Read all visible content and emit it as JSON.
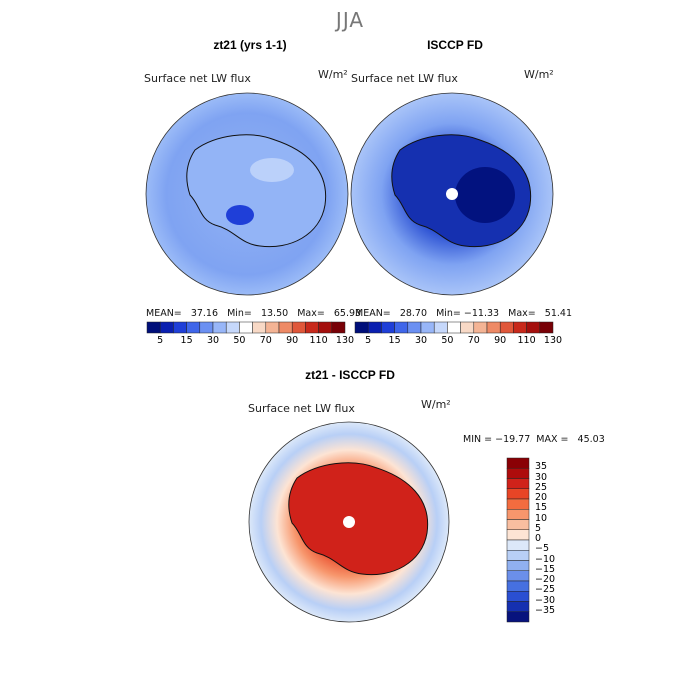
{
  "season": "JJA",
  "panels": [
    {
      "title": "zt21 (yrs 1-1)",
      "variable": "Surface net LW flux",
      "unit": "W/m²",
      "stats": "MEAN=   37.16   Min=   13.50   Max=   65.93"
    },
    {
      "title": "ISCCP FD",
      "variable": "Surface net LW flux",
      "unit": "W/m²",
      "stats": "MEAN=   28.70   Min= −11.33   Max=   51.41"
    },
    {
      "title": "zt21 - ISCCP FD",
      "variable": "Surface net LW flux",
      "unit": "W/m²",
      "stats": "MIN = −19.77  MAX =   45.03"
    }
  ],
  "colorbar_top": {
    "ticks": [
      "5",
      "15",
      "30",
      "50",
      "70",
      "90",
      "110",
      "130"
    ],
    "colors": [
      "#000f7a",
      "#0a1fb0",
      "#1f3fd8",
      "#3f66ea",
      "#6b90f2",
      "#98b6f8",
      "#c6d8fb",
      "#ffffff",
      "#f8d9c6",
      "#f4b495",
      "#ee8a66",
      "#e0573a",
      "#c8291b",
      "#a40f0d",
      "#780006"
    ]
  },
  "colorbar_diff": {
    "ticks": [
      "35",
      "30",
      "25",
      "20",
      "15",
      "10",
      "5",
      "0",
      "−5",
      "−10",
      "−15",
      "−20",
      "−25",
      "−30",
      "−35"
    ],
    "colors": [
      "#8a0005",
      "#ae0c0c",
      "#d0221a",
      "#e84526",
      "#f36c3f",
      "#f7966c",
      "#f9bea0",
      "#fde4d4",
      "#dce8f9",
      "#b8cff6",
      "#90b0f0",
      "#6b8fea",
      "#4670e0",
      "#2a4fd2",
      "#1530b0",
      "#07137d"
    ]
  }
}
